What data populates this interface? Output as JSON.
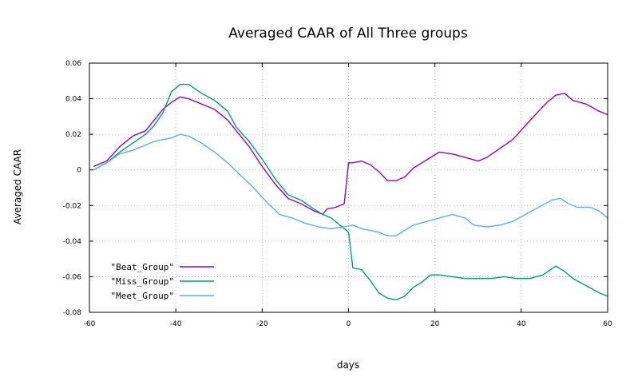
{
  "chart_data": {
    "type": "line",
    "title": "Averaged CAAR of All Three groups",
    "xlabel": "days",
    "ylabel": "Averaged CAAR",
    "xlim": [
      -60,
      60
    ],
    "ylim": [
      -0.08,
      0.06
    ],
    "xticks": [
      "-60",
      "-40",
      "-20",
      "0",
      "20",
      "40",
      "60"
    ],
    "yticks": [
      "0.06",
      "0.04",
      "0.02",
      "0",
      "-0.02",
      "-0.04",
      "-0.06",
      "-0.08"
    ],
    "grid": true,
    "legend_position": "bottom-left",
    "series": [
      {
        "name": "\"Beat_Group\"",
        "color": "#9400d3",
        "x": [
          -59,
          -56,
          -53,
          -50,
          -47,
          -45,
          -43,
          -41,
          -39,
          -37,
          -34,
          -31,
          -28,
          -26,
          -23,
          -20,
          -17,
          -14,
          -11,
          -8,
          -6,
          -5,
          -3,
          -1,
          0,
          1,
          3,
          5,
          7,
          9,
          11,
          13,
          15,
          17,
          19,
          21,
          24,
          27,
          30,
          32,
          35,
          38,
          41,
          44,
          46,
          48,
          50,
          52,
          55,
          58,
          60
        ],
        "y": [
          0.002,
          0.005,
          0.013,
          0.019,
          0.022,
          0.028,
          0.034,
          0.038,
          0.041,
          0.04,
          0.037,
          0.034,
          0.028,
          0.022,
          0.013,
          0.002,
          -0.008,
          -0.016,
          -0.019,
          -0.023,
          -0.025,
          -0.022,
          -0.021,
          -0.019,
          0.004,
          0.004,
          0.005,
          0.003,
          -0.001,
          -0.006,
          -0.006,
          -0.004,
          0.001,
          0.004,
          0.007,
          0.01,
          0.009,
          0.007,
          0.005,
          0.007,
          0.012,
          0.017,
          0.025,
          0.033,
          0.038,
          0.042,
          0.043,
          0.039,
          0.037,
          0.033,
          0.031
        ]
      },
      {
        "name": "\"Miss_Group\"",
        "color": "#009e73",
        "x": [
          -59,
          -56,
          -53,
          -50,
          -47,
          -45,
          -43,
          -41,
          -39,
          -37,
          -34,
          -31,
          -28,
          -26,
          -23,
          -20,
          -17,
          -14,
          -11,
          -8,
          -6,
          -4,
          -2,
          0,
          1,
          3,
          5,
          7,
          9,
          11,
          13,
          15,
          17,
          19,
          21,
          24,
          27,
          30,
          33,
          36,
          39,
          42,
          45,
          48,
          50,
          52,
          55,
          58,
          60
        ],
        "y": [
          0.0,
          0.004,
          0.01,
          0.015,
          0.02,
          0.025,
          0.032,
          0.044,
          0.048,
          0.048,
          0.043,
          0.039,
          0.033,
          0.024,
          0.016,
          0.006,
          -0.005,
          -0.014,
          -0.017,
          -0.022,
          -0.025,
          -0.027,
          -0.031,
          -0.035,
          -0.055,
          -0.056,
          -0.062,
          -0.069,
          -0.072,
          -0.073,
          -0.071,
          -0.066,
          -0.063,
          -0.059,
          -0.059,
          -0.06,
          -0.061,
          -0.061,
          -0.061,
          -0.06,
          -0.061,
          -0.061,
          -0.059,
          -0.054,
          -0.057,
          -0.061,
          -0.065,
          -0.069,
          -0.071
        ]
      },
      {
        "name": "\"Meet_Group\"",
        "color": "#56b4e9",
        "x": [
          -59,
          -56,
          -53,
          -50,
          -47,
          -45,
          -43,
          -41,
          -39,
          -37,
          -34,
          -31,
          -28,
          -25,
          -22,
          -19,
          -16,
          -13,
          -10,
          -7,
          -4,
          -1,
          1,
          3,
          5,
          7,
          9,
          11,
          13,
          15,
          18,
          21,
          24,
          27,
          29,
          32,
          35,
          38,
          41,
          44,
          47,
          49,
          51,
          53,
          56,
          58,
          60
        ],
        "y": [
          0.0,
          0.004,
          0.009,
          0.011,
          0.014,
          0.016,
          0.017,
          0.018,
          0.02,
          0.019,
          0.015,
          0.01,
          0.004,
          -0.003,
          -0.01,
          -0.018,
          -0.025,
          -0.027,
          -0.03,
          -0.032,
          -0.033,
          -0.032,
          -0.031,
          -0.033,
          -0.034,
          -0.035,
          -0.037,
          -0.037,
          -0.034,
          -0.031,
          -0.029,
          -0.027,
          -0.025,
          -0.027,
          -0.031,
          -0.032,
          -0.031,
          -0.029,
          -0.025,
          -0.021,
          -0.017,
          -0.016,
          -0.019,
          -0.021,
          -0.021,
          -0.023,
          -0.027
        ]
      }
    ]
  }
}
